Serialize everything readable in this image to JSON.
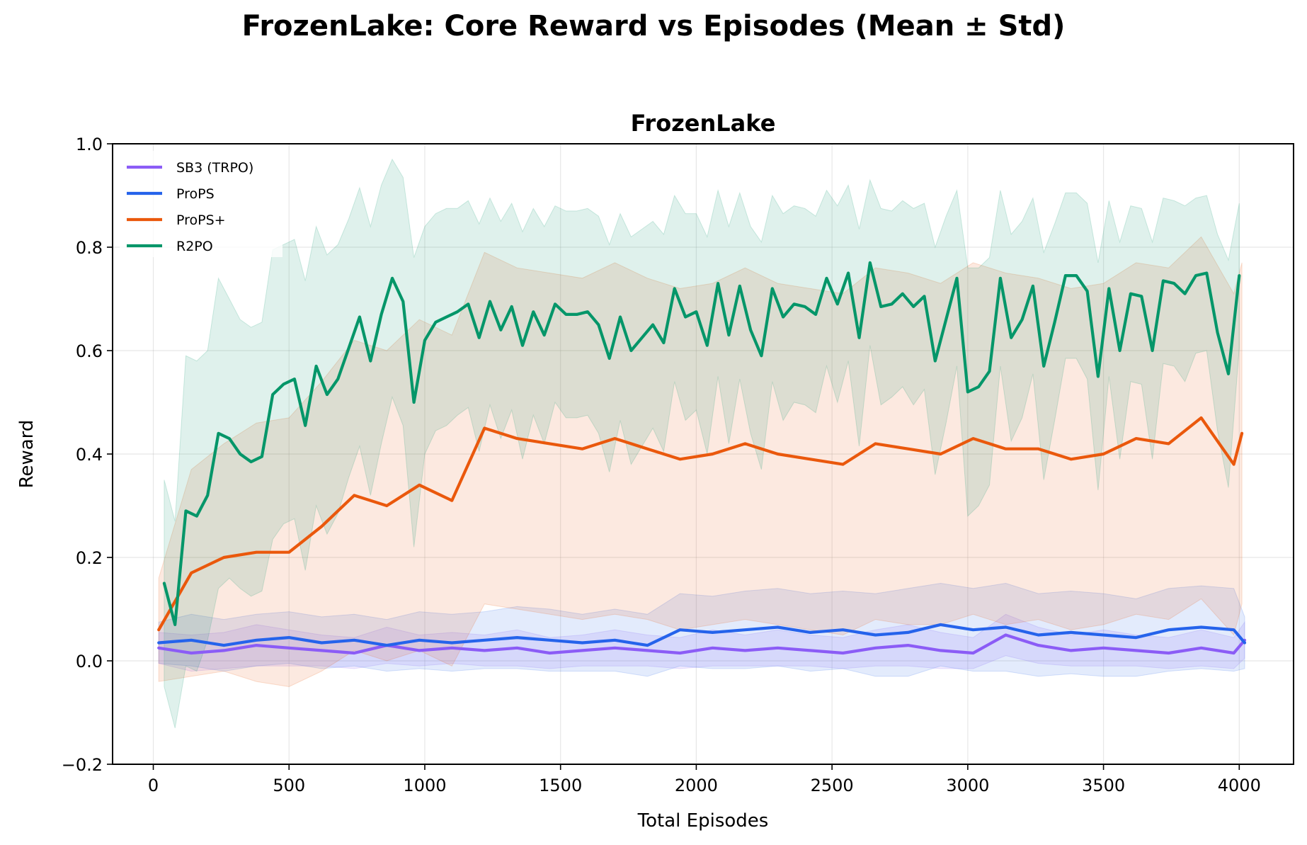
{
  "figure": {
    "title": "FrozenLake: Core Reward vs Episodes (Mean ± Std)"
  },
  "chart_data": {
    "type": "line",
    "title": "FrozenLake",
    "xlabel": "Total Episodes",
    "ylabel": "Reward",
    "xlim": [
      -150,
      4200
    ],
    "ylim": [
      -0.2,
      1.0
    ],
    "xticks": [
      0,
      500,
      1000,
      1500,
      2000,
      2500,
      3000,
      3500,
      4000
    ],
    "yticks": [
      -0.2,
      0.0,
      0.2,
      0.4,
      0.6,
      0.8,
      1.0
    ],
    "xtick_labels": [
      "0",
      "500",
      "1000",
      "1500",
      "2000",
      "2500",
      "3000",
      "3500",
      "4000"
    ],
    "ytick_labels": [
      "−0.2",
      "0.0",
      "0.2",
      "0.4",
      "0.6",
      "0.8",
      "1.0"
    ],
    "grid": true,
    "legend": "top-left",
    "shaded_band": "mean ± std",
    "series": [
      {
        "name": "SB3 (TRPO)",
        "color": "#8b5cf6",
        "x": [
          20,
          140,
          260,
          380,
          500,
          620,
          740,
          860,
          980,
          1100,
          1220,
          1340,
          1460,
          1580,
          1700,
          1820,
          1940,
          2060,
          2180,
          2300,
          2420,
          2540,
          2660,
          2780,
          2900,
          3020,
          3140,
          3260,
          3380,
          3500,
          3620,
          3740,
          3860,
          3980,
          4020
        ],
        "mean": [
          0.025,
          0.015,
          0.02,
          0.03,
          0.025,
          0.02,
          0.015,
          0.03,
          0.02,
          0.025,
          0.02,
          0.025,
          0.015,
          0.02,
          0.025,
          0.02,
          0.015,
          0.025,
          0.02,
          0.025,
          0.02,
          0.015,
          0.025,
          0.03,
          0.02,
          0.015,
          0.05,
          0.03,
          0.02,
          0.025,
          0.02,
          0.015,
          0.025,
          0.015,
          0.04
        ],
        "std": [
          0.03,
          0.035,
          0.035,
          0.04,
          0.035,
          0.03,
          0.03,
          0.035,
          0.03,
          0.03,
          0.03,
          0.035,
          0.03,
          0.03,
          0.035,
          0.03,
          0.03,
          0.035,
          0.03,
          0.035,
          0.03,
          0.03,
          0.035,
          0.04,
          0.035,
          0.03,
          0.04,
          0.035,
          0.03,
          0.035,
          0.03,
          0.03,
          0.035,
          0.03,
          0.035
        ]
      },
      {
        "name": "ProPS",
        "color": "#2563eb",
        "x": [
          20,
          140,
          260,
          380,
          500,
          620,
          740,
          860,
          980,
          1100,
          1220,
          1340,
          1460,
          1580,
          1700,
          1820,
          1940,
          2060,
          2180,
          2300,
          2420,
          2540,
          2660,
          2780,
          2900,
          3020,
          3140,
          3260,
          3380,
          3500,
          3620,
          3740,
          3860,
          3980,
          4020
        ],
        "mean": [
          0.035,
          0.04,
          0.03,
          0.04,
          0.045,
          0.035,
          0.04,
          0.03,
          0.04,
          0.035,
          0.04,
          0.045,
          0.04,
          0.035,
          0.04,
          0.03,
          0.06,
          0.055,
          0.06,
          0.065,
          0.055,
          0.06,
          0.05,
          0.055,
          0.07,
          0.06,
          0.065,
          0.05,
          0.055,
          0.05,
          0.045,
          0.06,
          0.065,
          0.06,
          0.035
        ],
        "std": [
          0.04,
          0.05,
          0.05,
          0.05,
          0.05,
          0.05,
          0.05,
          0.05,
          0.055,
          0.055,
          0.055,
          0.06,
          0.06,
          0.055,
          0.06,
          0.06,
          0.07,
          0.07,
          0.075,
          0.075,
          0.075,
          0.075,
          0.08,
          0.085,
          0.08,
          0.08,
          0.085,
          0.08,
          0.08,
          0.08,
          0.075,
          0.08,
          0.08,
          0.08,
          0.05
        ]
      },
      {
        "name": "ProPS+",
        "color": "#ea580c",
        "x": [
          20,
          140,
          260,
          380,
          500,
          620,
          740,
          860,
          980,
          1100,
          1220,
          1340,
          1460,
          1580,
          1700,
          1820,
          1940,
          2060,
          2180,
          2300,
          2420,
          2540,
          2660,
          2780,
          2900,
          3020,
          3140,
          3260,
          3380,
          3500,
          3620,
          3740,
          3860,
          3980,
          4010
        ],
        "mean": [
          0.06,
          0.17,
          0.2,
          0.21,
          0.21,
          0.26,
          0.32,
          0.3,
          0.34,
          0.31,
          0.45,
          0.43,
          0.42,
          0.41,
          0.43,
          0.41,
          0.39,
          0.4,
          0.42,
          0.4,
          0.39,
          0.38,
          0.42,
          0.41,
          0.4,
          0.43,
          0.41,
          0.41,
          0.39,
          0.4,
          0.43,
          0.42,
          0.47,
          0.38,
          0.44
        ],
        "std": [
          0.1,
          0.2,
          0.22,
          0.25,
          0.26,
          0.28,
          0.3,
          0.3,
          0.32,
          0.32,
          0.34,
          0.33,
          0.33,
          0.33,
          0.34,
          0.33,
          0.33,
          0.33,
          0.34,
          0.33,
          0.33,
          0.33,
          0.34,
          0.34,
          0.33,
          0.34,
          0.34,
          0.33,
          0.33,
          0.33,
          0.34,
          0.34,
          0.35,
          0.33,
          0.33
        ]
      },
      {
        "name": "R2PO",
        "color": "#059669",
        "x": [
          40,
          80,
          120,
          160,
          200,
          240,
          280,
          320,
          360,
          400,
          440,
          480,
          520,
          560,
          600,
          640,
          680,
          720,
          760,
          800,
          840,
          880,
          920,
          960,
          1000,
          1040,
          1080,
          1120,
          1160,
          1200,
          1240,
          1280,
          1320,
          1360,
          1400,
          1440,
          1480,
          1520,
          1560,
          1600,
          1640,
          1680,
          1720,
          1760,
          1800,
          1840,
          1880,
          1920,
          1960,
          2000,
          2040,
          2080,
          2120,
          2160,
          2200,
          2240,
          2280,
          2320,
          2360,
          2400,
          2440,
          2480,
          2520,
          2560,
          2600,
          2640,
          2680,
          2720,
          2760,
          2800,
          2840,
          2880,
          2920,
          2960,
          3000,
          3040,
          3080,
          3120,
          3160,
          3200,
          3240,
          3280,
          3320,
          3360,
          3400,
          3440,
          3480,
          3520,
          3560,
          3600,
          3640,
          3680,
          3720,
          3760,
          3800,
          3840,
          3880,
          3920,
          3960,
          4000
        ],
        "mean": [
          0.15,
          0.07,
          0.29,
          0.28,
          0.32,
          0.44,
          0.43,
          0.4,
          0.385,
          0.395,
          0.515,
          0.535,
          0.545,
          0.455,
          0.57,
          0.515,
          0.545,
          0.605,
          0.665,
          0.58,
          0.67,
          0.74,
          0.695,
          0.5,
          0.62,
          0.655,
          0.665,
          0.675,
          0.69,
          0.625,
          0.695,
          0.64,
          0.685,
          0.61,
          0.675,
          0.63,
          0.69,
          0.67,
          0.67,
          0.675,
          0.65,
          0.585,
          0.665,
          0.6,
          0.625,
          0.65,
          0.615,
          0.72,
          0.665,
          0.675,
          0.61,
          0.73,
          0.63,
          0.725,
          0.64,
          0.59,
          0.72,
          0.665,
          0.69,
          0.685,
          0.67,
          0.74,
          0.69,
          0.75,
          0.625,
          0.77,
          0.685,
          0.69,
          0.71,
          0.685,
          0.705,
          0.58,
          0.66,
          0.74,
          0.52,
          0.53,
          0.56,
          0.74,
          0.625,
          0.66,
          0.725,
          0.57,
          0.655,
          0.745,
          0.745,
          0.715,
          0.55,
          0.72,
          0.6,
          0.71,
          0.705,
          0.6,
          0.735,
          0.73,
          0.71,
          0.745,
          0.75,
          0.635,
          0.555,
          0.745
        ],
        "std": [
          0.2,
          0.2,
          0.3,
          0.3,
          0.28,
          0.3,
          0.27,
          0.26,
          0.26,
          0.26,
          0.28,
          0.27,
          0.27,
          0.28,
          0.27,
          0.27,
          0.26,
          0.25,
          0.25,
          0.26,
          0.25,
          0.23,
          0.24,
          0.28,
          0.22,
          0.21,
          0.21,
          0.2,
          0.2,
          0.22,
          0.2,
          0.21,
          0.2,
          0.22,
          0.2,
          0.21,
          0.19,
          0.2,
          0.2,
          0.2,
          0.21,
          0.22,
          0.2,
          0.22,
          0.21,
          0.2,
          0.21,
          0.18,
          0.2,
          0.19,
          0.21,
          0.18,
          0.21,
          0.18,
          0.2,
          0.22,
          0.18,
          0.2,
          0.19,
          0.19,
          0.19,
          0.17,
          0.19,
          0.17,
          0.21,
          0.16,
          0.19,
          0.18,
          0.18,
          0.19,
          0.18,
          0.22,
          0.2,
          0.17,
          0.24,
          0.23,
          0.22,
          0.17,
          0.2,
          0.19,
          0.17,
          0.22,
          0.19,
          0.16,
          0.16,
          0.17,
          0.22,
          0.17,
          0.21,
          0.17,
          0.17,
          0.21,
          0.16,
          0.16,
          0.17,
          0.15,
          0.15,
          0.19,
          0.22,
          0.14
        ]
      }
    ]
  }
}
